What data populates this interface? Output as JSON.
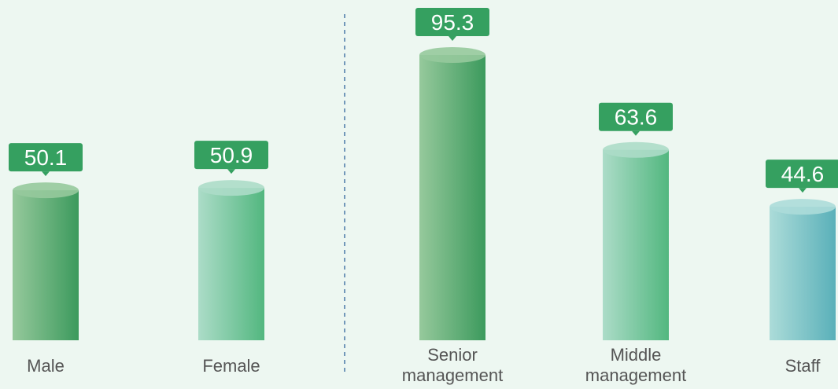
{
  "chart_data": {
    "type": "bar",
    "categories": [
      "Male",
      "Female",
      "Senior management",
      "Middle management",
      "Staff"
    ],
    "values": [
      50.1,
      50.9,
      95.3,
      63.6,
      44.6
    ],
    "colors": [
      [
        "#96c99c",
        "#3c9a5d"
      ],
      [
        "#acdcc8",
        "#52b77f"
      ],
      [
        "#96c99c",
        "#3c9a5d"
      ],
      [
        "#acdcc8",
        "#52b77f"
      ],
      [
        "#acdcd9",
        "#5ab0b9"
      ]
    ],
    "label_color": "#35a060"
  }
}
